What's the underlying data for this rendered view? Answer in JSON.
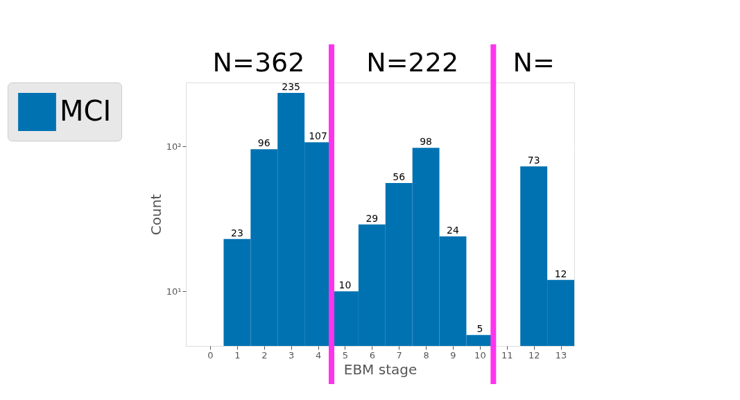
{
  "chart_data": {
    "type": "histogram",
    "xlabel": "EBM stage",
    "ylabel": "Count",
    "bins": [
      0.5,
      1.5,
      2.5,
      3.5,
      4.5,
      5.5,
      6.5,
      7.5,
      8.5,
      9.5,
      10.5,
      11.5,
      12.5,
      13.5
    ],
    "series": [
      {
        "name": "MCI",
        "color": "#0072b2",
        "values": [
          23,
          96,
          235,
          107,
          10,
          29,
          56,
          98,
          24,
          5,
          null,
          73,
          12
        ]
      }
    ],
    "value_labels": [
      "23",
      "96",
      "235",
      "107",
      "10",
      "29",
      "56",
      "98",
      "24",
      "5",
      null,
      "73",
      "12"
    ],
    "log": "y",
    "xlim": [
      -0.9,
      13.5
    ],
    "xticks": [
      0,
      1,
      2,
      3,
      4,
      5,
      6,
      7,
      8,
      9,
      10,
      11,
      12,
      13
    ],
    "ylim": [
      4.2,
      277
    ],
    "yticks": [
      {
        "value": 10,
        "label": "10¹"
      },
      {
        "value": 100,
        "label": "10²"
      }
    ],
    "ref_lines": [
      {
        "axis": "x",
        "value": 4.5,
        "label": null,
        "color": "#ff33ee"
      },
      {
        "axis": "x",
        "value": 10.5,
        "label": null,
        "color": "#ff33ee"
      }
    ],
    "annotations": [
      "N=362",
      "N=222",
      "N="
    ],
    "grid": true,
    "legend": "left"
  }
}
